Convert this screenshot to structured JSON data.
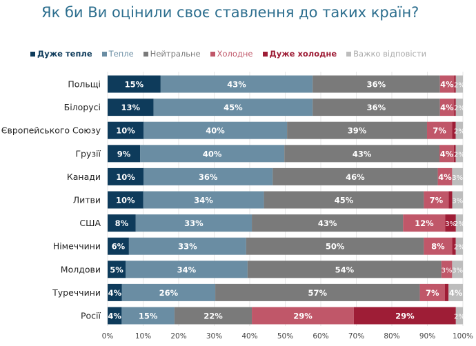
{
  "chart_data": {
    "type": "bar",
    "orientation": "horizontal",
    "stacked": true,
    "title": "Як би Ви оцінили своє ставлення до таких країн?",
    "categories": [
      "Польщі",
      "Білорусі",
      "Європейського Союзу",
      "Грузії",
      "Канади",
      "Литви",
      "США",
      "Німеччини",
      "Молдови",
      "Туреччини",
      "Росії"
    ],
    "series": [
      {
        "name": "Дуже тепле",
        "color": "#0e3b5b",
        "values": [
          15,
          13,
          10,
          9,
          10,
          10,
          8,
          6,
          5,
          4,
          4
        ]
      },
      {
        "name": "Тепле",
        "color": "#6a8da3",
        "values": [
          43,
          45,
          40,
          40,
          36,
          34,
          33,
          33,
          34,
          26,
          15
        ]
      },
      {
        "name": "Нейтральне",
        "color": "#7a7a7a",
        "values": [
          36,
          36,
          39,
          43,
          46,
          45,
          43,
          50,
          54,
          57,
          22
        ]
      },
      {
        "name": "Холодне",
        "color": "#c05769",
        "values": [
          4,
          4,
          7,
          4,
          4,
          7,
          12,
          8,
          3,
          7,
          29
        ]
      },
      {
        "name": "Дуже холодне",
        "color": "#9e1d36",
        "values": [
          0.5,
          0.5,
          1,
          0.5,
          0,
          1,
          3,
          1,
          0,
          1,
          29
        ]
      },
      {
        "name": "Важко відповісти",
        "color": "#bdbdbd",
        "values": [
          2,
          2,
          2,
          2,
          3,
          3,
          2,
          2,
          3,
          4,
          2
        ]
      }
    ],
    "xlim": [
      0,
      100
    ],
    "xticks": [
      "0%",
      "10%",
      "20%",
      "30%",
      "40%",
      "50%",
      "60%",
      "70%",
      "80%",
      "90%",
      "100%"
    ],
    "legend": "top",
    "grid": true
  }
}
